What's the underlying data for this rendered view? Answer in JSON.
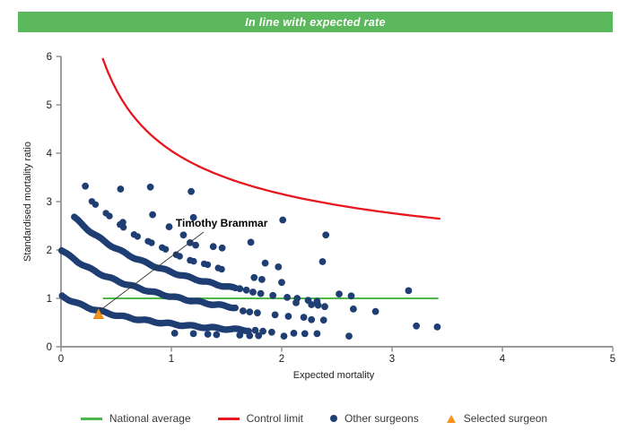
{
  "banner": {
    "text": "In line with expected rate",
    "bg_color": "#5cb85c",
    "text_color": "#ffffff"
  },
  "chart_data": {
    "type": "scatter",
    "title": "",
    "xlabel": "Expected mortality",
    "ylabel": "Standardised mortality ratio",
    "xlim": [
      0,
      5
    ],
    "ylim": [
      0,
      6
    ],
    "x_ticks": [
      0,
      1,
      2,
      3,
      4,
      5
    ],
    "y_ticks": [
      0,
      1,
      2,
      3,
      4,
      5,
      6
    ],
    "grid": "off",
    "axis_color": "#8c8c8c",
    "tick_label_color": "#1a1a1a",
    "national_average": {
      "label": "National average",
      "y": 1,
      "x_start": 0.38,
      "x_end": 3.42,
      "color": "#4db848"
    },
    "control_limit": {
      "label": "Control limit",
      "formula": "y = a + b/sqrt(x)",
      "a": 1,
      "b": 3.05,
      "x_start": 0.38,
      "x_end": 3.43,
      "color": "#e8161e"
    },
    "selected_surgeon": {
      "label": "Selected surgeon",
      "name": "Timothy Brammar",
      "x": 0.34,
      "y": 0.67,
      "color": "#f6921e",
      "edge_color": "#e07b00"
    },
    "annotation": {
      "text": "Timothy Brammar",
      "text_x": 1.3,
      "text_y": 2.52,
      "line_from": [
        1.292,
        2.37
      ],
      "line_to": [
        0.357,
        0.757
      ],
      "line_color": "#333333"
    },
    "other_surgeons": {
      "label": "Other surgeons",
      "color": "#1f3e73",
      "band_formula": "y = k/(x+c)",
      "bands": [
        {
          "name": "dashed-upper-band",
          "k": 4.0,
          "c": 1.05,
          "x_start": 0.28,
          "x_end": 1.52,
          "dots": 40,
          "pattern": "dashed"
        },
        {
          "name": "upper-band",
          "k": 3.21,
          "c": 1.08,
          "x_start": 0.12,
          "x_end": 1.58,
          "dots": 110,
          "pattern": "solid"
        },
        {
          "name": "middle-band",
          "k": 2.15,
          "c": 1.07,
          "x_start": 0.005,
          "x_end": 1.58,
          "dots": 120,
          "pattern": "solid"
        },
        {
          "name": "lower-band",
          "k": 0.85,
          "c": 0.8,
          "x_start": 0.01,
          "x_end": 1.7,
          "dots": 125,
          "pattern": "solid"
        }
      ],
      "points": [
        [
          0.22,
          3.32
        ],
        [
          0.54,
          3.26
        ],
        [
          0.81,
          3.3
        ],
        [
          1.18,
          3.21
        ],
        [
          0.56,
          2.57
        ],
        [
          0.83,
          2.73
        ],
        [
          1.2,
          2.67
        ],
        [
          2.01,
          2.62
        ],
        [
          2.4,
          2.31
        ],
        [
          0.98,
          2.48
        ],
        [
          1.11,
          2.31
        ],
        [
          1.17,
          2.15
        ],
        [
          1.22,
          2.1
        ],
        [
          1.38,
          2.07
        ],
        [
          1.46,
          2.04
        ],
        [
          1.72,
          2.16
        ],
        [
          1.85,
          1.73
        ],
        [
          1.97,
          1.65
        ],
        [
          2.37,
          1.76
        ],
        [
          1.75,
          1.43
        ],
        [
          1.82,
          1.39
        ],
        [
          2.0,
          1.33
        ],
        [
          1.62,
          1.2
        ],
        [
          1.68,
          1.17
        ],
        [
          1.74,
          1.13
        ],
        [
          1.81,
          1.1
        ],
        [
          1.92,
          1.06
        ],
        [
          2.05,
          1.02
        ],
        [
          2.14,
          1.0
        ],
        [
          2.24,
          0.96
        ],
        [
          2.32,
          0.94
        ],
        [
          2.52,
          1.09
        ],
        [
          2.63,
          1.05
        ],
        [
          3.15,
          1.16
        ],
        [
          2.13,
          0.91
        ],
        [
          2.27,
          0.87
        ],
        [
          2.33,
          0.86
        ],
        [
          2.39,
          0.83
        ],
        [
          1.65,
          0.74
        ],
        [
          1.71,
          0.72
        ],
        [
          1.78,
          0.7
        ],
        [
          1.94,
          0.66
        ],
        [
          2.06,
          0.63
        ],
        [
          2.2,
          0.61
        ],
        [
          2.65,
          0.78
        ],
        [
          2.85,
          0.73
        ],
        [
          2.27,
          0.56
        ],
        [
          2.38,
          0.55
        ],
        [
          3.22,
          0.43
        ],
        [
          3.41,
          0.41
        ],
        [
          1.76,
          0.34
        ],
        [
          1.83,
          0.32
        ],
        [
          1.91,
          0.3
        ],
        [
          2.11,
          0.28
        ],
        [
          2.21,
          0.27
        ],
        [
          2.32,
          0.27
        ],
        [
          2.61,
          0.22
        ],
        [
          1.03,
          0.28
        ],
        [
          1.2,
          0.27
        ],
        [
          1.33,
          0.26
        ],
        [
          1.41,
          0.25
        ],
        [
          1.62,
          0.24
        ],
        [
          1.71,
          0.23
        ],
        [
          1.79,
          0.23
        ],
        [
          2.02,
          0.22
        ]
      ]
    }
  },
  "legend": {
    "items": [
      {
        "label": "National average",
        "type": "line",
        "color": "#4db848"
      },
      {
        "label": "Control limit",
        "type": "line",
        "color": "#e8161e"
      },
      {
        "label": "Other surgeons",
        "type": "dot",
        "color": "#1f3e73"
      },
      {
        "label": "Selected surgeon",
        "type": "triangle",
        "color": "#f6921e"
      }
    ]
  }
}
